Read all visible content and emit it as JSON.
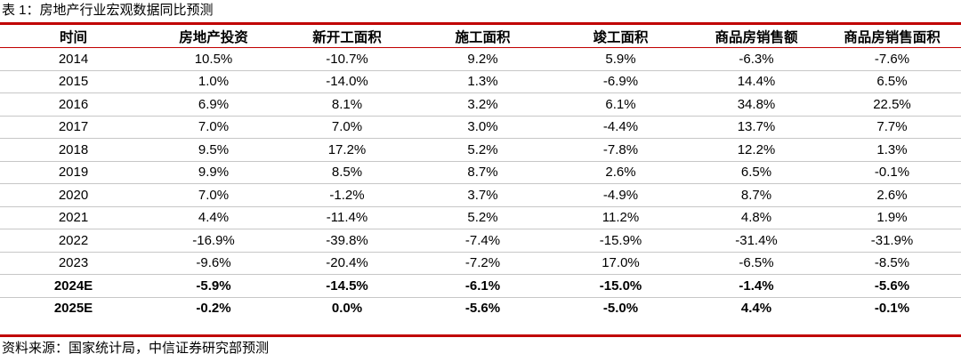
{
  "caption": "表 1：房地产行业宏观数据同比预测",
  "columns": [
    "时间",
    "房地产投资",
    "新开工面积",
    "施工面积",
    "竣工面积",
    "商品房销售额",
    "商品房销售面积"
  ],
  "rows": [
    {
      "cells": [
        "2014",
        "10.5%",
        "-10.7%",
        "9.2%",
        "5.9%",
        "-6.3%",
        "-7.6%"
      ],
      "forecast": false
    },
    {
      "cells": [
        "2015",
        "1.0%",
        "-14.0%",
        "1.3%",
        "-6.9%",
        "14.4%",
        "6.5%"
      ],
      "forecast": false
    },
    {
      "cells": [
        "2016",
        "6.9%",
        "8.1%",
        "3.2%",
        "6.1%",
        "34.8%",
        "22.5%"
      ],
      "forecast": false
    },
    {
      "cells": [
        "2017",
        "7.0%",
        "7.0%",
        "3.0%",
        "-4.4%",
        "13.7%",
        "7.7%"
      ],
      "forecast": false
    },
    {
      "cells": [
        "2018",
        "9.5%",
        "17.2%",
        "5.2%",
        "-7.8%",
        "12.2%",
        "1.3%"
      ],
      "forecast": false
    },
    {
      "cells": [
        "2019",
        "9.9%",
        "8.5%",
        "8.7%",
        "2.6%",
        "6.5%",
        "-0.1%"
      ],
      "forecast": false
    },
    {
      "cells": [
        "2020",
        "7.0%",
        "-1.2%",
        "3.7%",
        "-4.9%",
        "8.7%",
        "2.6%"
      ],
      "forecast": false
    },
    {
      "cells": [
        "2021",
        "4.4%",
        "-11.4%",
        "5.2%",
        "11.2%",
        "4.8%",
        "1.9%"
      ],
      "forecast": false
    },
    {
      "cells": [
        "2022",
        "-16.9%",
        "-39.8%",
        "-7.4%",
        "-15.9%",
        "-31.4%",
        "-31.9%"
      ],
      "forecast": false
    },
    {
      "cells": [
        "2023",
        "-9.6%",
        "-20.4%",
        "-7.2%",
        "17.0%",
        "-6.5%",
        "-8.5%"
      ],
      "forecast": false
    },
    {
      "cells": [
        "2024E",
        "-5.9%",
        "-14.5%",
        "-6.1%",
        "-15.0%",
        "-1.4%",
        "-5.6%"
      ],
      "forecast": true
    },
    {
      "cells": [
        "2025E",
        "-0.2%",
        "0.0%",
        "-5.6%",
        "-5.0%",
        "4.4%",
        "-0.1%"
      ],
      "forecast": true
    }
  ],
  "source": "资料来源：国家统计局，中信证券研究部预测",
  "colors": {
    "rule": "#c00000",
    "row_divider": "#c7c7c7",
    "text": "#000000"
  }
}
